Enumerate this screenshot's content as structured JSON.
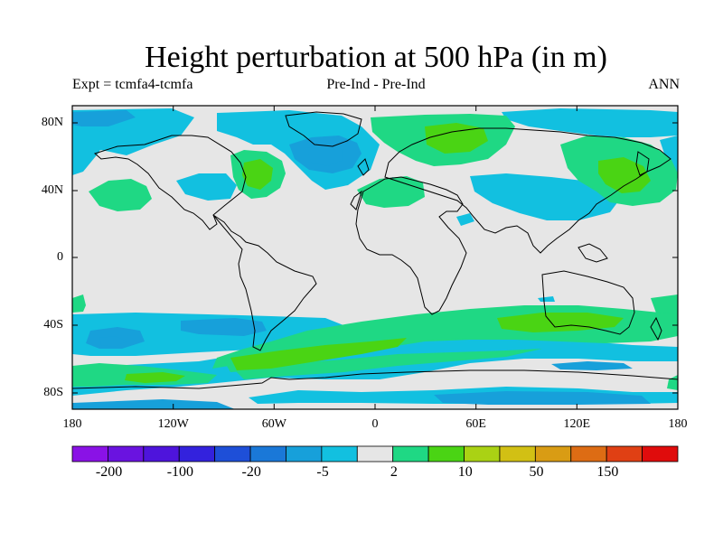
{
  "title": "Height perturbation at 500 hPa (in m)",
  "subtitle_left": "Expt = tcmfa4-tcmfa",
  "subtitle_center": "Pre-Ind - Pre-Ind",
  "subtitle_right": "ANN",
  "lat_ticks": [
    "80N",
    "40N",
    "0",
    "40S",
    "80S"
  ],
  "lon_ticks": [
    "180",
    "120W",
    "60W",
    "0",
    "60E",
    "120E",
    "180"
  ],
  "colorbar": {
    "colors": [
      "#8a12e6",
      "#6a13e0",
      "#4e14dc",
      "#3322dd",
      "#1e4fd8",
      "#1a78d8",
      "#17a0da",
      "#12c0e0",
      "#e6e6e6",
      "#1fd884",
      "#4ad414",
      "#aad214",
      "#d2c014",
      "#d99c14",
      "#dd6c14",
      "#e04014",
      "#e00c0c"
    ],
    "labels": [
      "-200",
      "-100",
      "-20",
      "-5",
      "2",
      "10",
      "50",
      "150"
    ]
  }
}
